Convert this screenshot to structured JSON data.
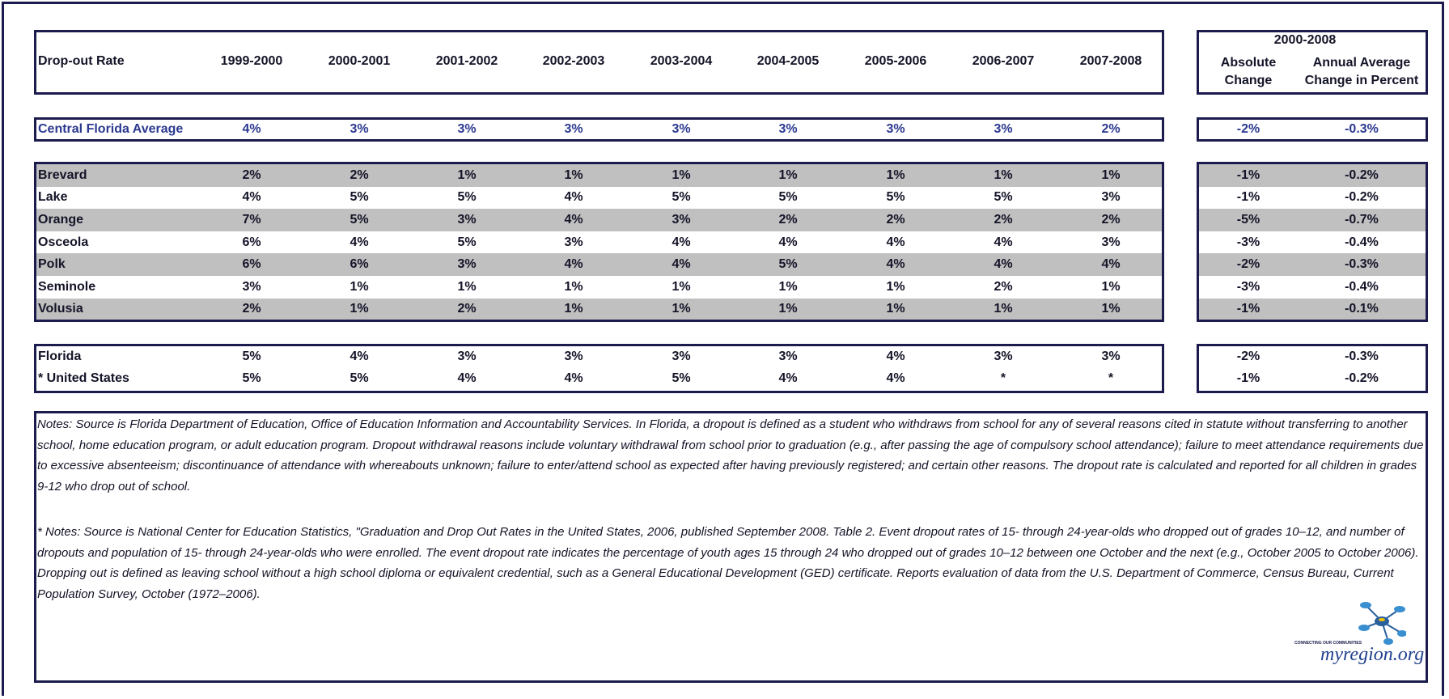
{
  "header": {
    "label": "Drop-out Rate",
    "periods": [
      "1999-2000",
      "2000-2001",
      "2001-2002",
      "2002-2003",
      "2003-2004",
      "2004-2005",
      "2005-2006",
      "2006-2007",
      "2007-2008"
    ]
  },
  "right_header": {
    "span": "2000-2008",
    "absolute": "Absolute Change",
    "average": "Annual Average Change in Percent"
  },
  "groups": [
    {
      "rows": [
        {
          "name": "Central Florida Average",
          "values": [
            "4%",
            "3%",
            "3%",
            "3%",
            "3%",
            "3%",
            "3%",
            "3%",
            "2%"
          ],
          "absolute": "-2%",
          "average": "-0.3%"
        }
      ]
    },
    {
      "rows": [
        {
          "name": "Brevard",
          "values": [
            "2%",
            "2%",
            "1%",
            "1%",
            "1%",
            "1%",
            "1%",
            "1%",
            "1%"
          ],
          "absolute": "-1%",
          "average": "-0.2%"
        },
        {
          "name": "Lake",
          "values": [
            "4%",
            "5%",
            "5%",
            "4%",
            "5%",
            "5%",
            "5%",
            "5%",
            "3%"
          ],
          "absolute": "-1%",
          "average": "-0.2%"
        },
        {
          "name": "Orange",
          "values": [
            "7%",
            "5%",
            "3%",
            "4%",
            "3%",
            "2%",
            "2%",
            "2%",
            "2%"
          ],
          "absolute": "-5%",
          "average": "-0.7%"
        },
        {
          "name": "Osceola",
          "values": [
            "6%",
            "4%",
            "5%",
            "3%",
            "4%",
            "4%",
            "4%",
            "4%",
            "3%"
          ],
          "absolute": "-3%",
          "average": "-0.4%"
        },
        {
          "name": "Polk",
          "values": [
            "6%",
            "6%",
            "3%",
            "4%",
            "4%",
            "5%",
            "4%",
            "4%",
            "4%"
          ],
          "absolute": "-2%",
          "average": "-0.3%"
        },
        {
          "name": "Seminole",
          "values": [
            "3%",
            "1%",
            "1%",
            "1%",
            "1%",
            "1%",
            "1%",
            "2%",
            "1%"
          ],
          "absolute": "-3%",
          "average": "-0.4%"
        },
        {
          "name": "Volusia",
          "values": [
            "2%",
            "1%",
            "2%",
            "1%",
            "1%",
            "1%",
            "1%",
            "1%",
            "1%"
          ],
          "absolute": "-1%",
          "average": "-0.1%"
        }
      ]
    },
    {
      "rows": [
        {
          "name": "Florida",
          "values": [
            "5%",
            "4%",
            "3%",
            "3%",
            "3%",
            "3%",
            "4%",
            "3%",
            "3%"
          ],
          "absolute": "-2%",
          "average": "-0.3%"
        },
        {
          "name": "* United States",
          "values": [
            "5%",
            "5%",
            "4%",
            "4%",
            "5%",
            "4%",
            "4%",
            "*",
            "*"
          ],
          "absolute": "-1%",
          "average": "-0.2%"
        }
      ]
    }
  ],
  "notes": [
    "Notes: Source is Florida Department of Education, Office of Education Information and Accountability Services.  In Florida, a dropout is defined as a student who withdraws from school for any of several reasons cited in statute without transferring to another school, home education program, or adult education program. Dropout withdrawal reasons include voluntary withdrawal from school prior to graduation (e.g., after passing the age of compulsory school attendance); failure to meet attendance requirements due to excessive absenteeism; discontinuance of attendance with whereabouts unknown; failure to enter/attend school as expected after having previously registered; and certain other reasons. The dropout rate is calculated and reported for all children in grades 9-12 who drop out of school.",
    "* Notes: Source is National Center for Education Statistics, \"Graduation and Drop Out Rates in the United States, 2006, published September 2008.  Table 2. Event dropout rates of 15- through 24-year-olds who dropped out of grades 10–12, and number of dropouts and population of 15- through 24-year-olds who were enrolled. The event dropout rate indicates the percentage of youth ages 15 through 24 who dropped out of grades 10–12 between one October and the next (e.g., October 2005 to October 2006). Dropping out is defined as leaving school without a high school diploma or equivalent credential, such as a General Educational Development (GED) certificate. Reports evaluation of data from the U.S. Department of Commerce, Census Bureau, Current Population Survey, October (1972–2006)."
  ],
  "logo": {
    "tagline": "CONNECTING OUR COMMUNITIES",
    "name": "myregion.org"
  }
}
